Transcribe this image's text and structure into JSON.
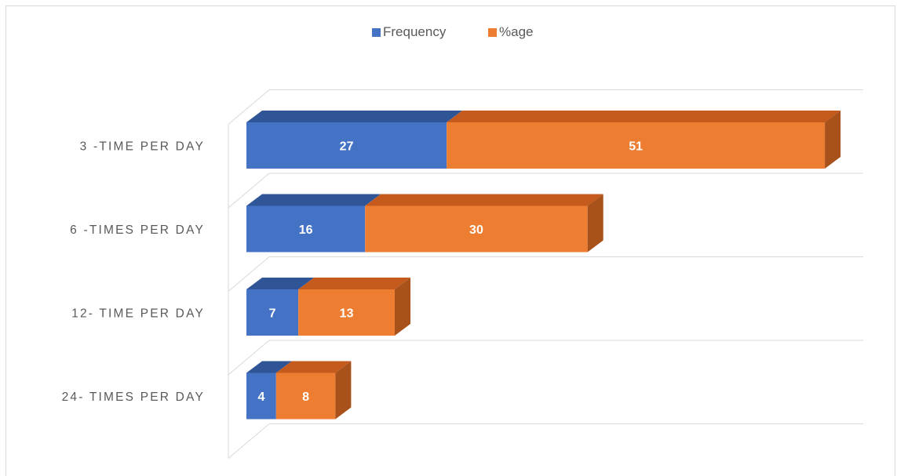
{
  "chart_data": {
    "type": "bar",
    "orientation": "horizontal",
    "stacked": true,
    "style": "3d",
    "categories": [
      "3 -TIME PER DAY",
      "6 -TIMES PER DAY",
      "12- TIME PER DAY",
      "24- TIMES PER DAY"
    ],
    "series": [
      {
        "name": "Frequency",
        "values": [
          27,
          16,
          7,
          4
        ],
        "color": "#4472c4",
        "top_color": "#2f5597",
        "side_color": "#2f5597"
      },
      {
        "name": "%age",
        "values": [
          51,
          30,
          13,
          8
        ],
        "color": "#ed7d31",
        "top_color": "#c55a1d",
        "side_color": "#a9511a"
      }
    ],
    "xlim": [
      0,
      80
    ],
    "legend": "top",
    "grid": true,
    "data_labels": true
  }
}
